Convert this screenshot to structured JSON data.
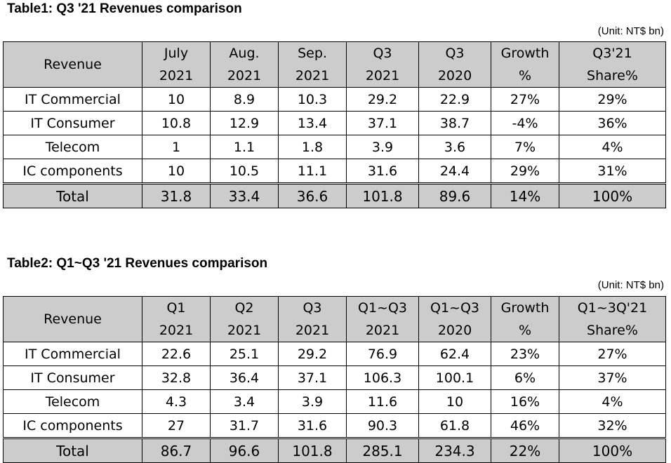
{
  "tables": [
    {
      "caption": "Table1:  Q3 '21 Revenues comparison",
      "unit": "(Unit: NT$ bn)",
      "row_header": "Revenue",
      "columns": [
        {
          "l1": "July",
          "l2": "2021"
        },
        {
          "l1": "Aug.",
          "l2": "2021"
        },
        {
          "l1": "Sep.",
          "l2": "2021"
        },
        {
          "l1": "Q3",
          "l2": "2021"
        },
        {
          "l1": "Q3",
          "l2": "2020"
        },
        {
          "l1": "Growth",
          "l2": "%"
        },
        {
          "l1": "Q3'21",
          "l2": "Share%"
        }
      ],
      "rows": [
        {
          "label": "IT Commercial",
          "cells": [
            "10",
            "8.9",
            "10.3",
            "29.2",
            "22.9",
            "27%",
            "29%"
          ]
        },
        {
          "label": "IT Consumer",
          "cells": [
            "10.8",
            "12.9",
            "13.4",
            "37.1",
            "38.7",
            "-4%",
            "36%"
          ]
        },
        {
          "label": "Telecom",
          "cells": [
            "1",
            "1.1",
            "1.8",
            "3.9",
            "3.6",
            "7%",
            "4%"
          ]
        },
        {
          "label": "IC components",
          "cells": [
            "10",
            "10.5",
            "11.1",
            "31.6",
            "24.4",
            "29%",
            "31%"
          ]
        },
        {
          "label": "Total",
          "cells": [
            "31.8",
            "33.4",
            "36.6",
            "101.8",
            "89.6",
            "14%",
            "100%"
          ]
        }
      ]
    },
    {
      "caption": "Table2: Q1~Q3 '21 Revenues comparison",
      "unit": "(Unit: NT$ bn)",
      "row_header": "Revenue",
      "columns": [
        {
          "l1": "Q1",
          "l2": "2021"
        },
        {
          "l1": "Q2",
          "l2": "2021"
        },
        {
          "l1": "Q3",
          "l2": "2021"
        },
        {
          "l1": "Q1~Q3",
          "l2": "2021"
        },
        {
          "l1": "Q1~Q3",
          "l2": "2020"
        },
        {
          "l1": "Growth",
          "l2": "%"
        },
        {
          "l1": "Q1~3Q'21",
          "l2": "Share%"
        }
      ],
      "rows": [
        {
          "label": "IT Commercial",
          "cells": [
            "22.6",
            "25.1",
            "29.2",
            "76.9",
            "62.4",
            "23%",
            "27%"
          ]
        },
        {
          "label": "IT Consumer",
          "cells": [
            "32.8",
            "36.4",
            "37.1",
            "106.3",
            "100.1",
            "6%",
            "37%"
          ]
        },
        {
          "label": "Telecom",
          "cells": [
            "4.3",
            "3.4",
            "3.9",
            "11.6",
            "10",
            "16%",
            "4%"
          ]
        },
        {
          "label": "IC components",
          "cells": [
            "27",
            "31.7",
            "31.6",
            "90.3",
            "61.8",
            "46%",
            "32%"
          ]
        },
        {
          "label": "Total",
          "cells": [
            "86.7",
            "96.6",
            "101.8",
            "285.1",
            "234.3",
            "22%",
            "100%"
          ]
        }
      ]
    }
  ]
}
